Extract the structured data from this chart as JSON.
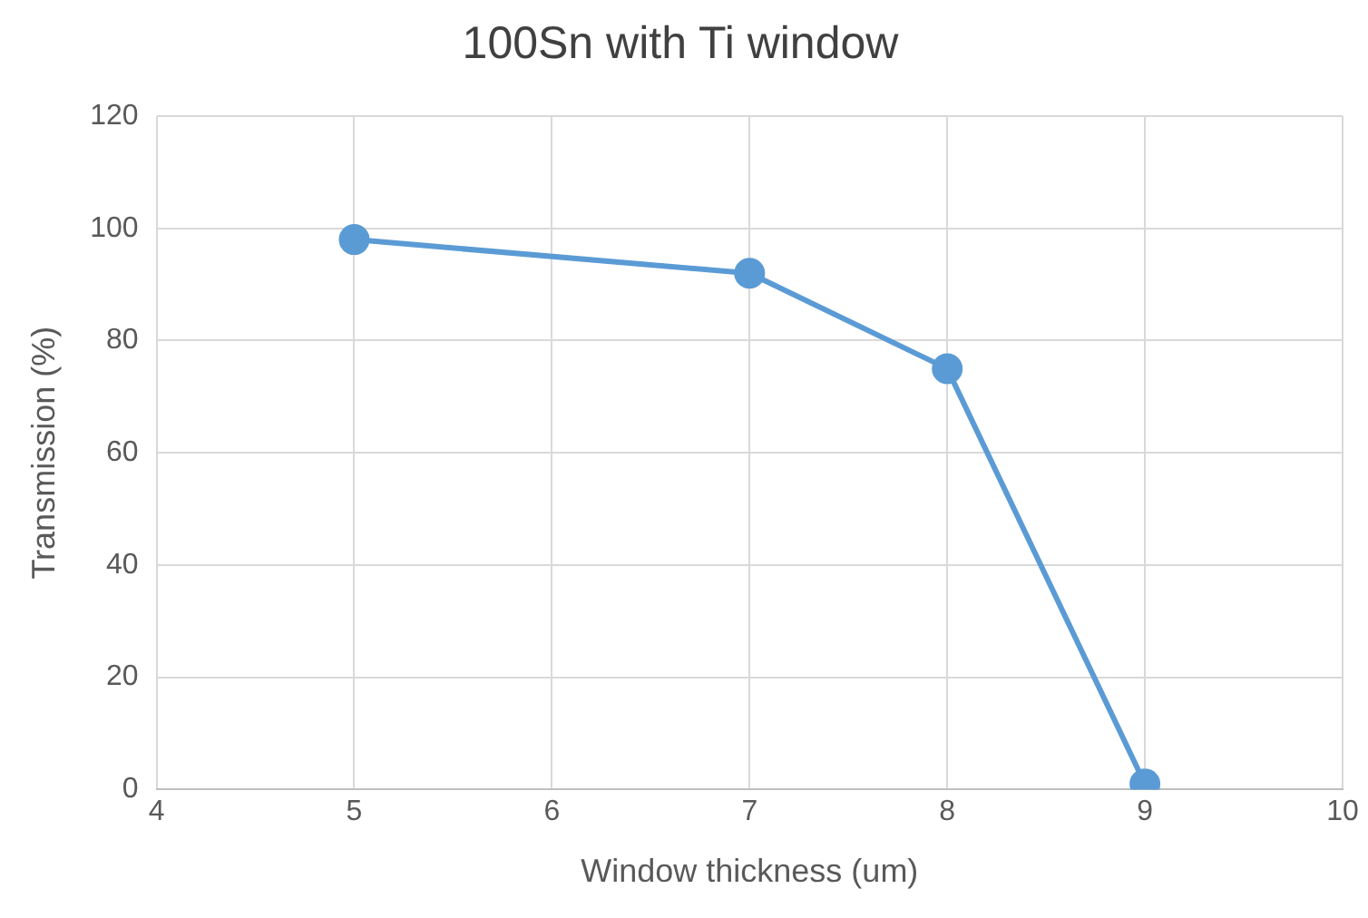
{
  "chart_data": {
    "type": "line",
    "title": "100Sn with Ti window",
    "xlabel": "Window thickness (um)",
    "ylabel": "Transmission (%)",
    "x": [
      5,
      7,
      8,
      9
    ],
    "series": [
      {
        "color": "#5b9bd5",
        "values": [
          98,
          92,
          75,
          1
        ]
      }
    ],
    "xlim": [
      4,
      10
    ],
    "xticks": [
      4,
      5,
      6,
      7,
      8,
      9,
      10
    ],
    "ylim": [
      0,
      120
    ],
    "yticks": [
      0,
      20,
      40,
      60,
      80,
      100,
      120
    ],
    "grid": true,
    "legend": false,
    "marker": "circle",
    "line_style": "solid"
  }
}
